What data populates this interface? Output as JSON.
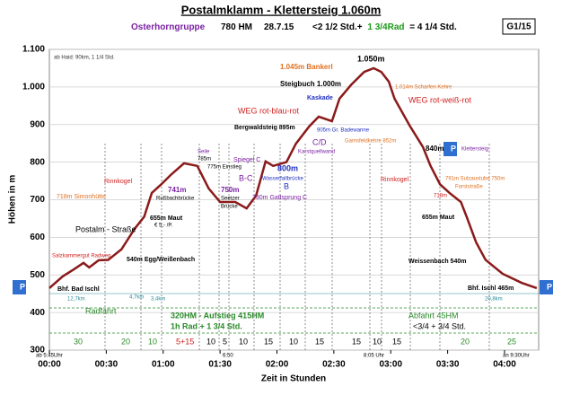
{
  "chart_data": {
    "type": "line",
    "title": "Postalmklamm - Klettersteig 1.060m",
    "subtitle_parts": [
      "Osterhorngruppe",
      "780 HM",
      "28.7.15",
      "<2 1/2 Std.+",
      "1 3/4Rad",
      "= 4 1/4 Std."
    ],
    "code": "G1/15",
    "xlabel": "Zeit in Stunden",
    "ylabel": "Höhen in m",
    "x": [
      0,
      7,
      13,
      18,
      21,
      26,
      31,
      38,
      45,
      50,
      54,
      59,
      64,
      71,
      78,
      84,
      90,
      98,
      104,
      109,
      114,
      118,
      125,
      130,
      137,
      142,
      149,
      153,
      159,
      166,
      171,
      175,
      179,
      182,
      190,
      197,
      201,
      206,
      211,
      217,
      220,
      225,
      230,
      239,
      249,
      257
    ],
    "series": [
      {
        "name": "Höhe",
        "color": "#8b1a1a",
        "values": [
          465,
          496,
          515,
          532,
          520,
          539,
          540,
          568,
          623,
          655,
          718,
          741,
          766,
          797,
          790,
          730,
          694,
          694,
          677,
          711,
          802,
          790,
          800,
          849,
          895,
          921,
          909,
          969,
          1005,
          1040,
          1050,
          1040,
          1014,
          969,
          897,
          840,
          790,
          741,
          718,
          694,
          655,
          587,
          540,
          503,
          479,
          465
        ]
      }
    ],
    "xlim": [
      0,
      258
    ],
    "xticks": [
      {
        "value": 0,
        "label": "00:00"
      },
      {
        "value": 30,
        "label": "00:30"
      },
      {
        "value": 60,
        "label": "01:00"
      },
      {
        "value": 90,
        "label": "01:30"
      },
      {
        "value": 120,
        "label": "02:00"
      },
      {
        "value": 150,
        "label": "02:30"
      },
      {
        "value": 180,
        "label": "03:00"
      },
      {
        "value": 210,
        "label": "03:30"
      },
      {
        "value": 240,
        "label": "04:00"
      }
    ],
    "ylim": [
      300,
      1100
    ],
    "yticks": [
      300,
      400,
      500,
      600,
      700,
      800,
      900,
      {
        "value": 1000,
        "label": "1.000"
      },
      {
        "value": 1100,
        "label": "1.100"
      }
    ],
    "grid": true,
    "annotations": [
      "ab Haid: 90km, 1 1/4 Std.",
      "Salzkammergut Radweg",
      "Postalm - Straße",
      "540m Egg/Weißenbach",
      "655m Maut",
      "€ 5,- /P.",
      "Rinnkogel",
      "718m Simonhütte",
      "741m",
      "Rußbachbrücke",
      "Seile",
      "785m",
      "775m Einstieg",
      "750m",
      "Seetzer",
      "Brücke",
      "B-C",
      "Spiegel C",
      "730m Gattsprung C",
      "800m",
      "Wasserfallbrücke",
      "B",
      "Bergwaldsteig 895m",
      "C/D",
      "Karstquellwand",
      "905m Gr. Badewanne",
      "WEG rot-blau-rot",
      "Kaskade",
      "Steigbuch 1.000m",
      "1.045m Bankerl",
      "1.050m",
      "1.014m Scharfen Kehre",
      "WEG rot-weiß-rot",
      "Gamsfeldkehre 852m",
      "840m",
      "Klettersteig",
      "Rinnkogel",
      "791m Sulzaustube 750m",
      "Forststraße",
      "718m",
      "655m Maut",
      "Weissenbach 540m",
      "Bhf. Bad Ischl",
      "Bhf. Ischl 465m",
      "P",
      "P",
      "P",
      "12,7km",
      "4,7km",
      "3,4km",
      "20,8km",
      "Radfahrt",
      "320HM - Aufstieg 415HM",
      "1h Rad + 1 3/4 Std.",
      "Abfahrt 45HM",
      "<3/4 + 3/4 Std.",
      "ab 5:45Uhr",
      "6:50",
      "8:05 Uhr",
      "an 9:30Uhr",
      "30",
      "20",
      "10",
      "5+15",
      "10",
      "5",
      "10",
      "15",
      "10",
      "15",
      "15",
      "10",
      "15",
      "20",
      "25"
    ]
  }
}
